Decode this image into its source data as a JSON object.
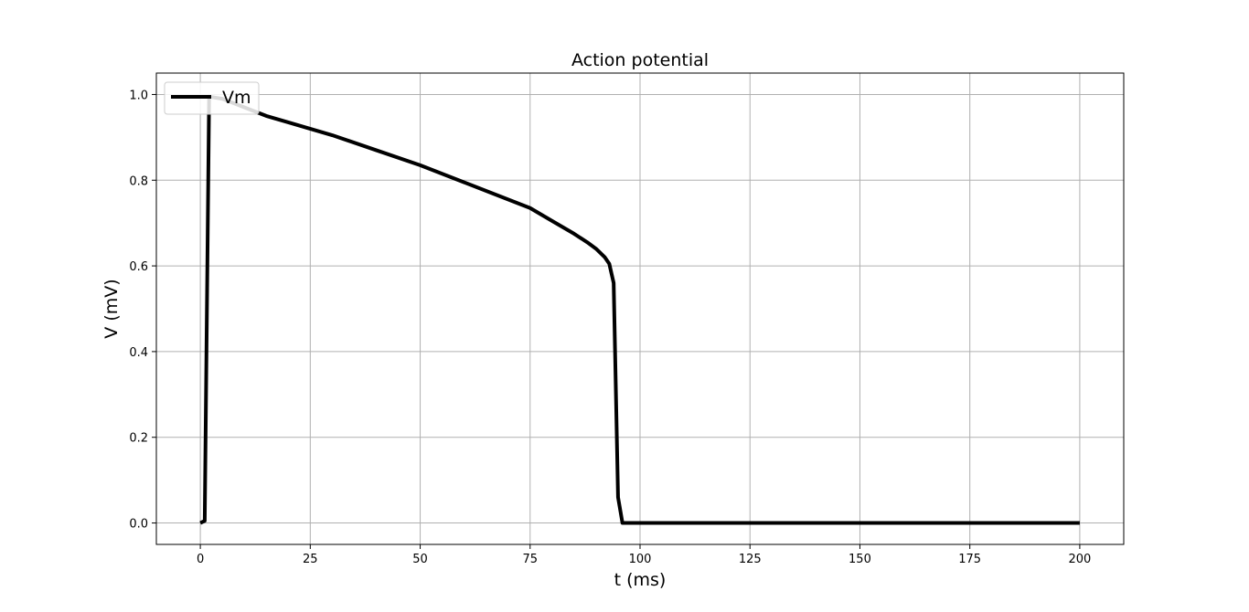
{
  "chart_data": {
    "type": "line",
    "title": "Action potential",
    "xlabel": "t (ms)",
    "ylabel": "V (mV)",
    "xlim": [
      -10,
      210
    ],
    "ylim": [
      -0.05,
      1.05
    ],
    "xticks": [
      0,
      25,
      50,
      75,
      100,
      125,
      150,
      175,
      200
    ],
    "xtick_labels": [
      "0",
      "25",
      "50",
      "75",
      "100",
      "125",
      "150",
      "175",
      "200"
    ],
    "yticks": [
      0.0,
      0.2,
      0.4,
      0.6,
      0.8,
      1.0
    ],
    "ytick_labels": [
      "0.0",
      "0.2",
      "0.4",
      "0.6",
      "0.8",
      "1.0"
    ],
    "grid": true,
    "legend_position": "upper-left",
    "series": [
      {
        "name": "Vm",
        "color": "#000000",
        "x": [
          0,
          1,
          2,
          5,
          10,
          15,
          20,
          30,
          40,
          50,
          60,
          70,
          75,
          80,
          85,
          88,
          90,
          92,
          93,
          94,
          95,
          96,
          97,
          100,
          125,
          150,
          175,
          200
        ],
        "y": [
          0.0,
          0.005,
          0.995,
          0.99,
          0.97,
          0.95,
          0.935,
          0.905,
          0.87,
          0.835,
          0.795,
          0.755,
          0.735,
          0.705,
          0.675,
          0.655,
          0.64,
          0.62,
          0.605,
          0.56,
          0.06,
          0.0,
          0.0,
          0.0,
          0.0,
          0.0,
          0.0,
          0.0
        ]
      }
    ]
  }
}
